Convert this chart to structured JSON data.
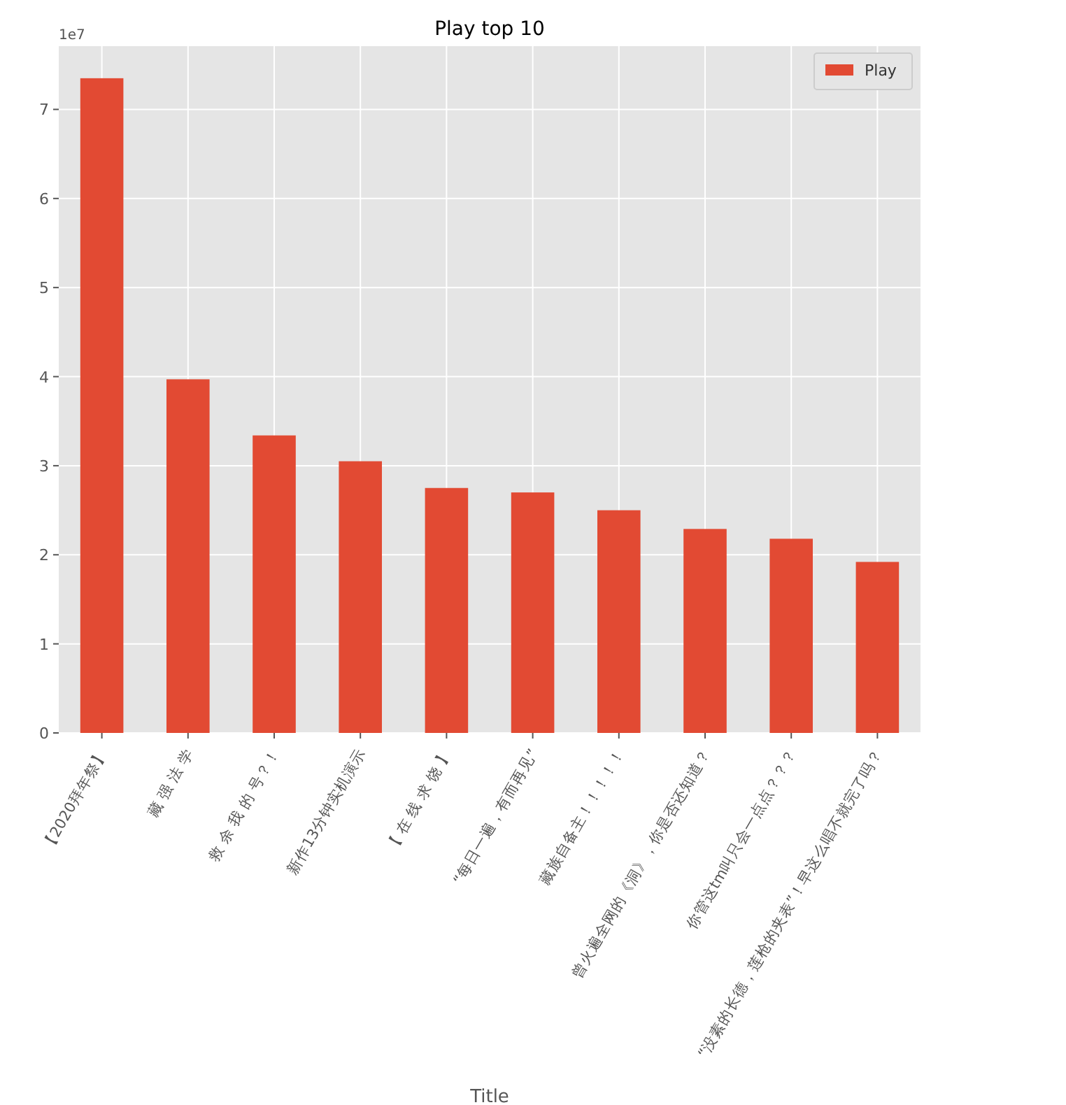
{
  "chart_data": {
    "type": "bar",
    "title": "Play top 10",
    "xlabel": "Title",
    "categories": [
      "【2020拜年祭】",
      "藏 强 法 学",
      "救 余 我 的 号？！",
      "新作13分钟实机演示",
      "【 在 线 求 饶 】",
      "“每日一遍，有而再见”",
      "藏族自备主！！！！！",
      "曾火遍全网的《洞》，你是否还知道？",
      "你管这tm叫只会一点点？？？",
      "“没素的长德，莲枪的夹表”！早这么唱不就完了吗？"
    ],
    "series": [
      {
        "name": "Play",
        "color": "#e24a33",
        "values": [
          7.35,
          3.97,
          3.34,
          3.05,
          2.75,
          2.7,
          2.5,
          2.29,
          2.18,
          1.92
        ]
      }
    ],
    "ylim": [
      0,
      7.71
    ],
    "yticks": [
      0,
      1,
      2,
      3,
      4,
      5,
      6,
      7
    ],
    "annotations": [
      "1e7"
    ],
    "grid": true,
    "legend": "top right"
  }
}
